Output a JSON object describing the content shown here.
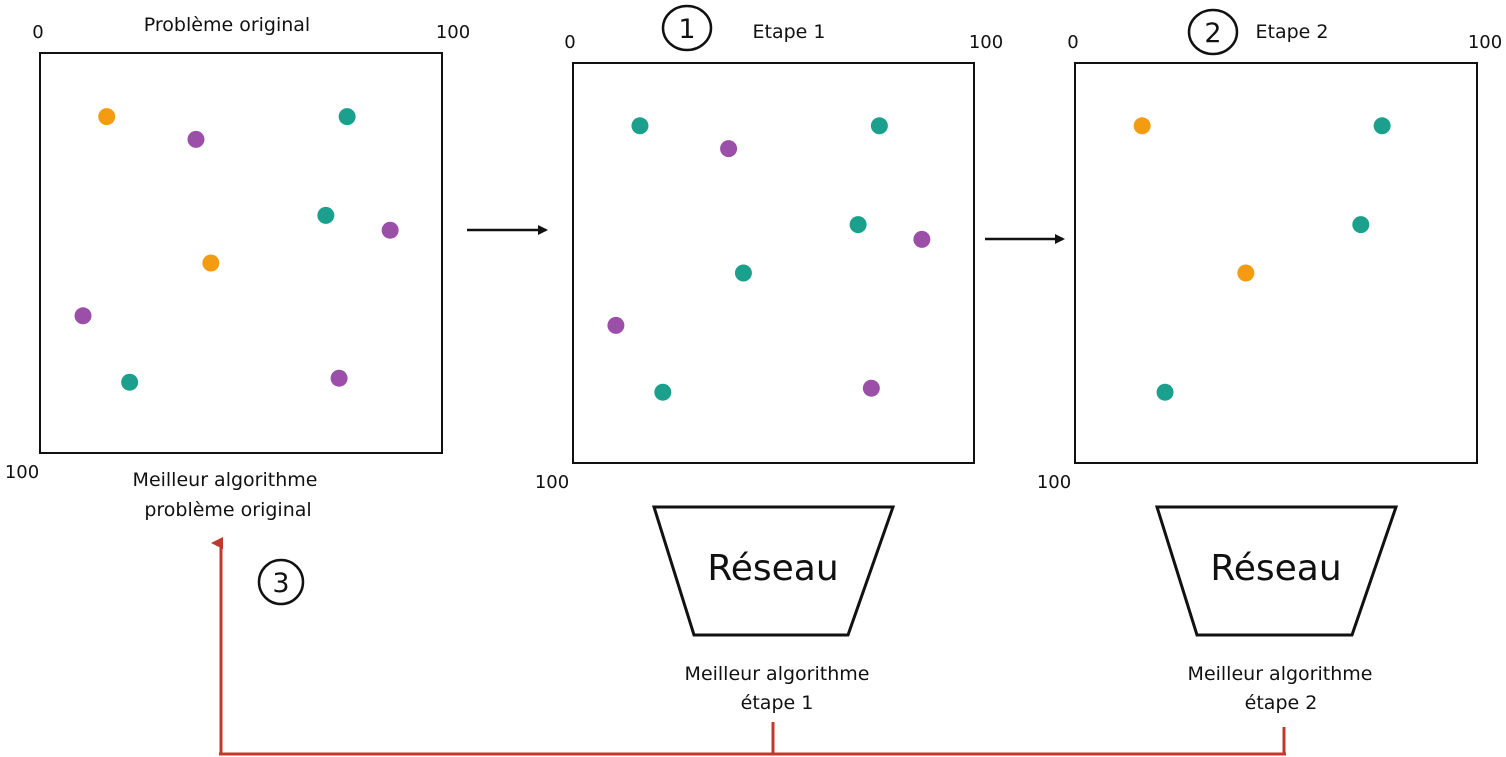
{
  "colors": {
    "orange": "#f39c12",
    "purple": "#9b4fa8",
    "teal": "#1aa08c",
    "outline": "#111111",
    "feedback": "#c0392b"
  },
  "panels": [
    {
      "id": "original",
      "title": "Problème original",
      "axis_start": "0",
      "axis_end_x": "100",
      "axis_end_y": "100",
      "caption_lines": [
        "Meilleur algorithme",
        "problème original"
      ],
      "points": [
        {
          "x": 16.6,
          "y": 15.9,
          "color": "orange"
        },
        {
          "x": 38.8,
          "y": 21.6,
          "color": "purple"
        },
        {
          "x": 76.4,
          "y": 15.9,
          "color": "teal"
        },
        {
          "x": 71.1,
          "y": 40.6,
          "color": "teal"
        },
        {
          "x": 87.1,
          "y": 44.3,
          "color": "purple"
        },
        {
          "x": 42.5,
          "y": 52.5,
          "color": "orange"
        },
        {
          "x": 10.7,
          "y": 65.7,
          "color": "purple"
        },
        {
          "x": 22.3,
          "y": 82.3,
          "color": "teal"
        },
        {
          "x": 74.4,
          "y": 81.3,
          "color": "purple"
        }
      ]
    },
    {
      "id": "etape1",
      "title": "Etape 1",
      "step_number": "1",
      "axis_start": "0",
      "axis_end_x": "100",
      "axis_end_y": "100",
      "network_label": "Réseau",
      "caption_lines": [
        "Meilleur algorithme",
        "étape 1"
      ],
      "points": [
        {
          "x": 16.7,
          "y": 15.7,
          "color": "teal"
        },
        {
          "x": 38.8,
          "y": 21.4,
          "color": "purple"
        },
        {
          "x": 76.4,
          "y": 15.7,
          "color": "teal"
        },
        {
          "x": 71.1,
          "y": 40.4,
          "color": "teal"
        },
        {
          "x": 87.0,
          "y": 44.1,
          "color": "purple"
        },
        {
          "x": 42.5,
          "y": 52.5,
          "color": "teal"
        },
        {
          "x": 10.7,
          "y": 65.6,
          "color": "purple"
        },
        {
          "x": 22.4,
          "y": 82.3,
          "color": "teal"
        },
        {
          "x": 74.4,
          "y": 81.3,
          "color": "purple"
        }
      ]
    },
    {
      "id": "etape2",
      "title": "Etape 2",
      "step_number": "2",
      "axis_start": "0",
      "axis_end_x": "100",
      "axis_end_y": "100",
      "network_label": "Réseau",
      "caption_lines": [
        "Meilleur algorithme",
        "étape 2"
      ],
      "points": [
        {
          "x": 16.7,
          "y": 15.7,
          "color": "orange"
        },
        {
          "x": 76.4,
          "y": 15.7,
          "color": "teal"
        },
        {
          "x": 71.1,
          "y": 40.4,
          "color": "teal"
        },
        {
          "x": 42.5,
          "y": 52.5,
          "color": "orange"
        },
        {
          "x": 22.4,
          "y": 82.3,
          "color": "teal"
        }
      ]
    }
  ],
  "feedback_step_number": "3"
}
